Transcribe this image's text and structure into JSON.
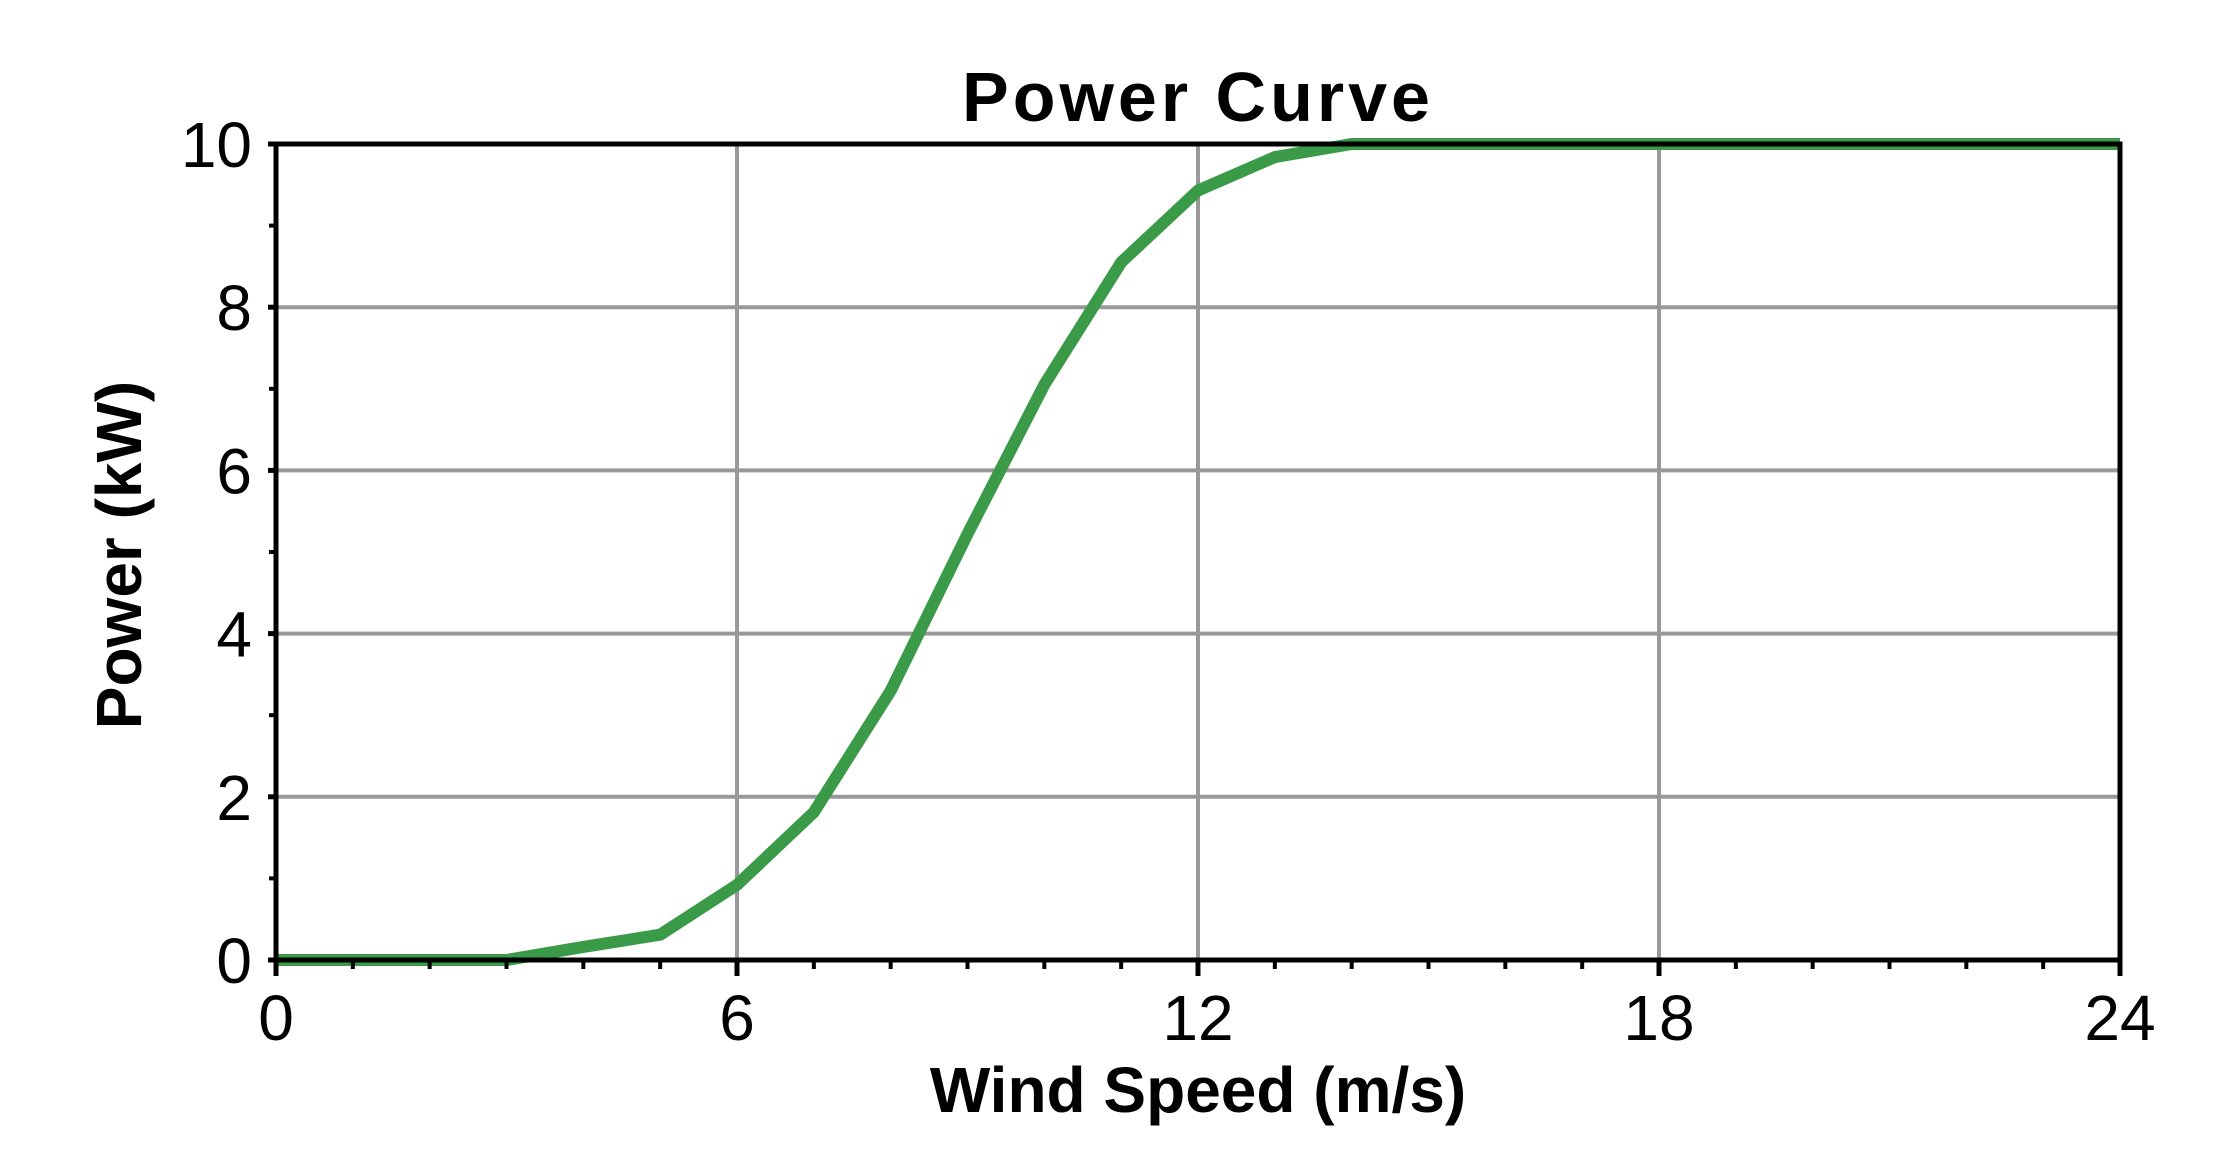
{
  "chart_data": {
    "type": "line",
    "title": "Power Curve",
    "xlabel": "Wind Speed (m/s)",
    "ylabel": "Power (kW)",
    "xlim": [
      0,
      24
    ],
    "ylim": [
      0,
      10
    ],
    "x_ticks": [
      0,
      6,
      12,
      18,
      24
    ],
    "y_ticks": [
      0,
      2,
      4,
      6,
      8,
      10
    ],
    "x_tick_labels": [
      "0",
      "6",
      "12",
      "18",
      "24"
    ],
    "y_tick_labels": [
      "0",
      "2",
      "4",
      "6",
      "8",
      "10"
    ],
    "x_minor_step": 1,
    "y_minor_step": 1,
    "grid": true,
    "grid_color": "#999999",
    "frame_color": "#000000",
    "series": [
      {
        "color": "#3a9a47",
        "x": [
          0,
          1,
          2,
          3,
          4,
          5,
          6,
          7,
          8,
          9,
          10,
          11,
          12,
          13,
          14,
          15,
          16,
          17,
          18,
          19,
          20,
          21,
          22,
          23,
          24
        ],
        "y": [
          0,
          0,
          0,
          0,
          0.16,
          0.31,
          0.92,
          1.81,
          3.3,
          5.22,
          7.05,
          8.55,
          9.43,
          9.84,
          10,
          10,
          10,
          10,
          10,
          10,
          10,
          10,
          10,
          10,
          10
        ]
      }
    ]
  }
}
